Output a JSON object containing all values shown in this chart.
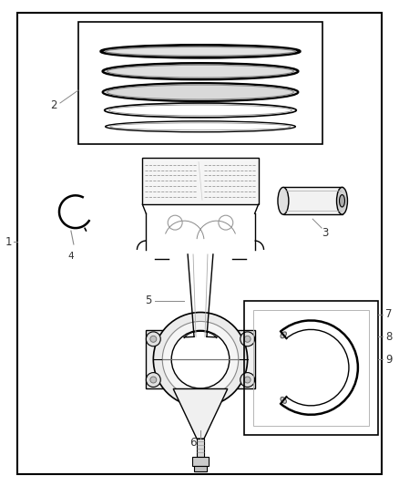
{
  "bg_color": "#ffffff",
  "line_color": "#000000",
  "label_color": "#333333",
  "fig_width": 4.38,
  "fig_height": 5.33,
  "dpi": 100,
  "labels": [
    "1",
    "2",
    "3",
    "4",
    "5",
    "6",
    "7",
    "8",
    "9"
  ]
}
